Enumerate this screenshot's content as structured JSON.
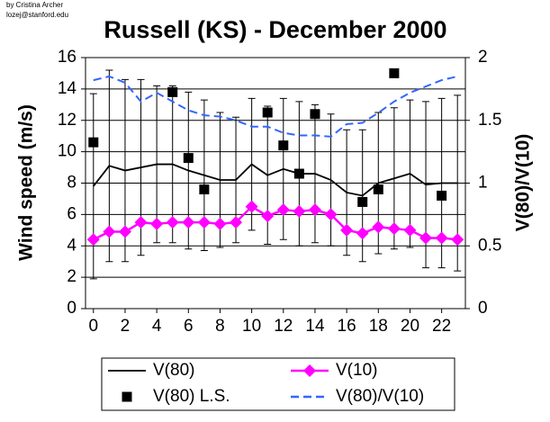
{
  "chart_data": {
    "type": "line",
    "title": "Russell (KS) - December 2000",
    "annotations": [
      "by Cristina Archer",
      "lozej@stanford.edu"
    ],
    "y_label": "Wind speed (m/s)",
    "y2_label": "V(80)/V(10)",
    "x": [
      0,
      1,
      2,
      3,
      4,
      5,
      6,
      7,
      8,
      9,
      10,
      11,
      12,
      13,
      14,
      15,
      16,
      17,
      18,
      19,
      20,
      21,
      22,
      23
    ],
    "xlim": [
      -0.5,
      23.5
    ],
    "xticks": [
      0,
      2,
      4,
      6,
      8,
      10,
      12,
      14,
      16,
      18,
      20,
      22
    ],
    "ylim": [
      0,
      16
    ],
    "yticks": [
      0,
      2,
      4,
      6,
      8,
      10,
      12,
      14,
      16
    ],
    "y2lim": [
      0,
      2
    ],
    "y2ticks": [
      0,
      0.5,
      1,
      1.5,
      2
    ],
    "grid": true,
    "legend": "bottom",
    "series": [
      {
        "name": "V(80)",
        "color": "#000000",
        "style": "line",
        "values": [
          7.8,
          9.1,
          8.8,
          9.0,
          9.2,
          9.2,
          8.8,
          8.5,
          8.2,
          8.2,
          9.2,
          8.5,
          8.9,
          8.6,
          8.6,
          8.2,
          7.4,
          7.2,
          8.0,
          8.3,
          8.6,
          7.9,
          8.0,
          8.0
        ],
        "errors": [
          5.9,
          6.1,
          5.8,
          5.6,
          5.0,
          5.0,
          5.0,
          4.8,
          4.3,
          4.0,
          4.2,
          4.4,
          4.5,
          4.6,
          4.4,
          4.2,
          4.0,
          4.2,
          4.5,
          4.5,
          4.7,
          5.3,
          5.4,
          5.6
        ]
      },
      {
        "name": "V(10)",
        "color": "#ff00ff",
        "style": "diamond-line",
        "values": [
          4.4,
          4.9,
          4.9,
          5.5,
          5.4,
          5.5,
          5.5,
          5.5,
          5.4,
          5.5,
          6.5,
          5.9,
          6.3,
          6.2,
          6.3,
          6.0,
          5.0,
          4.8,
          5.2,
          5.1,
          5.0,
          4.5,
          4.5,
          4.4
        ]
      },
      {
        "name": "V(80) L.S.",
        "color": "#000000",
        "style": "square",
        "values": [
          10.6,
          null,
          null,
          null,
          null,
          13.8,
          9.6,
          7.6,
          null,
          null,
          null,
          12.5,
          10.4,
          8.6,
          12.4,
          null,
          null,
          6.8,
          7.6,
          15.0,
          null,
          null,
          7.2,
          null
        ]
      },
      {
        "name": "V(80)/V(10)",
        "color": "#3366ff",
        "style": "dashed",
        "axis": "y2",
        "values": [
          1.82,
          1.85,
          1.8,
          1.65,
          1.72,
          1.65,
          1.58,
          1.54,
          1.53,
          1.5,
          1.45,
          1.45,
          1.4,
          1.38,
          1.38,
          1.37,
          1.47,
          1.48,
          1.56,
          1.65,
          1.72,
          1.77,
          1.82,
          1.85
        ]
      }
    ]
  }
}
